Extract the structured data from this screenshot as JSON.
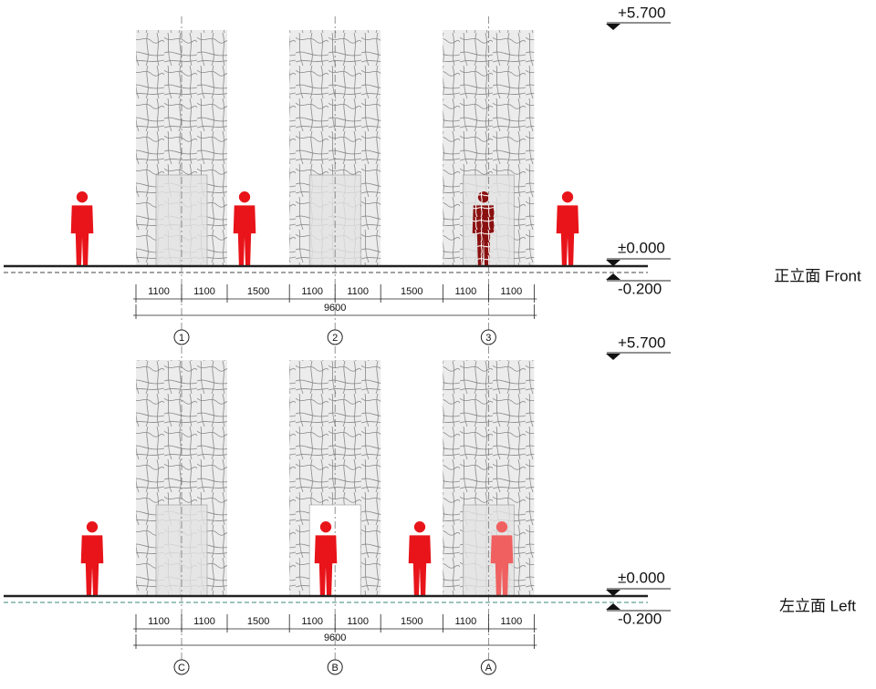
{
  "elevations": [
    {
      "title": "正立面 Front",
      "levels": [
        "+5.700",
        "±0.000",
        "-0.200"
      ],
      "dimensions": [
        1100,
        1100,
        1500,
        1100,
        1100,
        1500,
        1100,
        1100
      ],
      "total": 9600,
      "axes": [
        "1",
        "2",
        "3"
      ]
    },
    {
      "title": "左立面 Left",
      "levels": [
        "+5.700",
        "±0.000",
        "-0.200"
      ],
      "dimensions": [
        1100,
        1100,
        1500,
        1100,
        1100,
        1500,
        1100,
        1100
      ],
      "total": 9600,
      "axes": [
        "C",
        "B",
        "A"
      ]
    }
  ]
}
